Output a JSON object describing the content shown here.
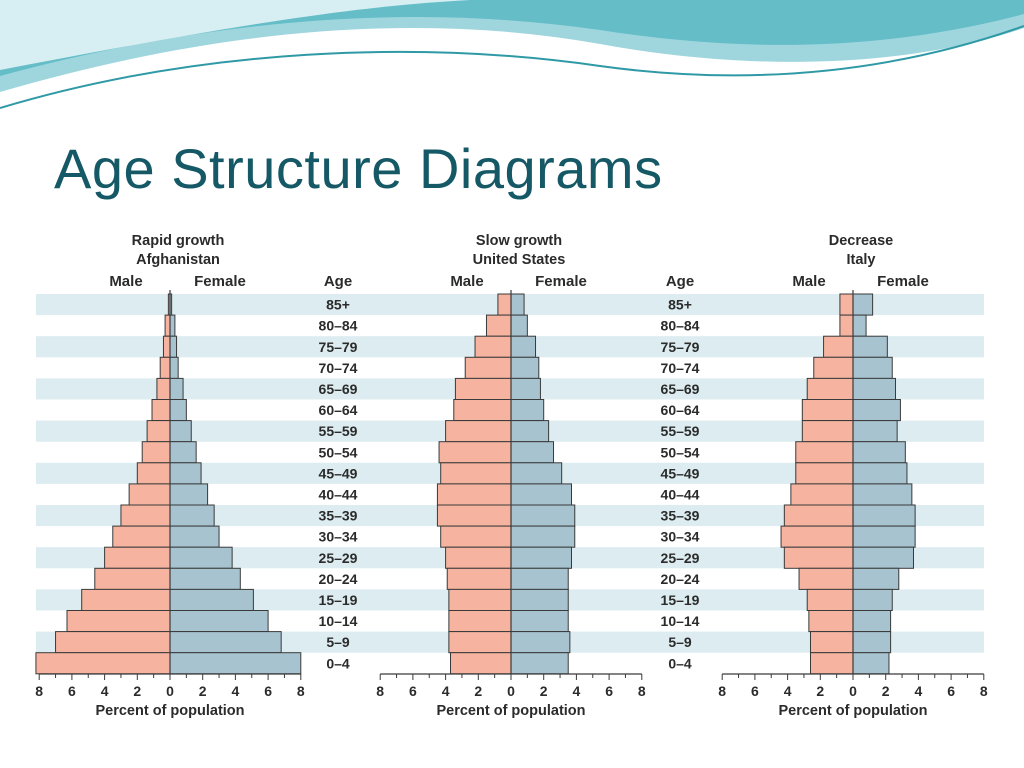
{
  "title": "Age Structure Diagrams",
  "colors": {
    "title": "#155866",
    "male_bar": "#f6b4a0",
    "female_bar": "#a7c3d0",
    "band": "#dcecf0",
    "wave_dark": "#2f9aa6",
    "wave_light": "#9fd6de"
  },
  "age_header": "Age",
  "age_groups": [
    "85+",
    "80–84",
    "75–79",
    "70–74",
    "65–69",
    "60–64",
    "55–59",
    "50–54",
    "45–49",
    "40–44",
    "35–39",
    "30–34",
    "25–29",
    "20–24",
    "15–19",
    "10–14",
    "5–9",
    "0–4"
  ],
  "chart_data": [
    {
      "type": "bar",
      "orientation": "horizontal-pyramid",
      "title": "Rapid growth",
      "subtitle": "Afghanistan",
      "left_label": "Male",
      "right_label": "Female",
      "xlabel": "Percent of population",
      "xlim": [
        -8,
        8
      ],
      "xticks": [
        "8",
        "6",
        "4",
        "2",
        "0",
        "2",
        "4",
        "6",
        "8"
      ],
      "categories": [
        "85+",
        "80–84",
        "75–79",
        "70–74",
        "65–69",
        "60–64",
        "55–59",
        "50–54",
        "45–49",
        "40–44",
        "35–39",
        "30–34",
        "25–29",
        "20–24",
        "15–19",
        "10–14",
        "5–9",
        "0–4"
      ],
      "series": [
        {
          "name": "Male",
          "values": [
            0.1,
            0.3,
            0.4,
            0.6,
            0.8,
            1.1,
            1.4,
            1.7,
            2.0,
            2.5,
            3.0,
            3.5,
            4.0,
            4.6,
            5.4,
            6.3,
            7.0,
            8.2
          ]
        },
        {
          "name": "Female",
          "values": [
            0.1,
            0.3,
            0.4,
            0.5,
            0.8,
            1.0,
            1.3,
            1.6,
            1.9,
            2.3,
            2.7,
            3.0,
            3.8,
            4.3,
            5.1,
            6.0,
            6.8,
            8.0
          ]
        }
      ]
    },
    {
      "type": "bar",
      "orientation": "horizontal-pyramid",
      "title": "Slow growth",
      "subtitle": "United States",
      "left_label": "Male",
      "right_label": "Female",
      "xlabel": "Percent of population",
      "xlim": [
        -8,
        8
      ],
      "xticks": [
        "8",
        "6",
        "4",
        "2",
        "0",
        "2",
        "4",
        "6",
        "8"
      ],
      "categories": [
        "85+",
        "80–84",
        "75–79",
        "70–74",
        "65–69",
        "60–64",
        "55–59",
        "50–54",
        "45–49",
        "40–44",
        "35–39",
        "30–34",
        "25–29",
        "20–24",
        "15–19",
        "10–14",
        "5–9",
        "0–4"
      ],
      "series": [
        {
          "name": "Male",
          "values": [
            0.8,
            1.5,
            2.2,
            2.8,
            3.4,
            3.5,
            4.0,
            4.4,
            4.3,
            4.5,
            4.5,
            4.3,
            4.0,
            3.9,
            3.8,
            3.8,
            3.8,
            3.7
          ]
        },
        {
          "name": "Female",
          "values": [
            0.8,
            1.0,
            1.5,
            1.7,
            1.8,
            2.0,
            2.3,
            2.6,
            3.1,
            3.7,
            3.9,
            3.9,
            3.7,
            3.5,
            3.5,
            3.5,
            3.6,
            3.5
          ]
        }
      ]
    },
    {
      "type": "bar",
      "orientation": "horizontal-pyramid",
      "title": "Decrease",
      "subtitle": "Italy",
      "left_label": "Male",
      "right_label": "Female",
      "xlabel": "Percent of population",
      "xlim": [
        -8,
        8
      ],
      "xticks": [
        "8",
        "6",
        "4",
        "2",
        "0",
        "2",
        "4",
        "6",
        "8"
      ],
      "categories": [
        "85+",
        "80–84",
        "75–79",
        "70–74",
        "65–69",
        "60–64",
        "55–59",
        "50–54",
        "45–49",
        "40–44",
        "35–39",
        "30–34",
        "25–29",
        "20–24",
        "15–19",
        "10–14",
        "5–9",
        "0–4"
      ],
      "series": [
        {
          "name": "Male",
          "values": [
            0.8,
            0.8,
            1.8,
            2.4,
            2.8,
            3.1,
            3.1,
            3.5,
            3.5,
            3.8,
            4.2,
            4.4,
            4.2,
            3.3,
            2.8,
            2.7,
            2.6,
            2.6
          ]
        },
        {
          "name": "Female",
          "values": [
            1.2,
            0.8,
            2.1,
            2.4,
            2.6,
            2.9,
            2.7,
            3.2,
            3.3,
            3.6,
            3.8,
            3.8,
            3.7,
            2.8,
            2.4,
            2.3,
            2.3,
            2.2
          ]
        }
      ]
    }
  ]
}
